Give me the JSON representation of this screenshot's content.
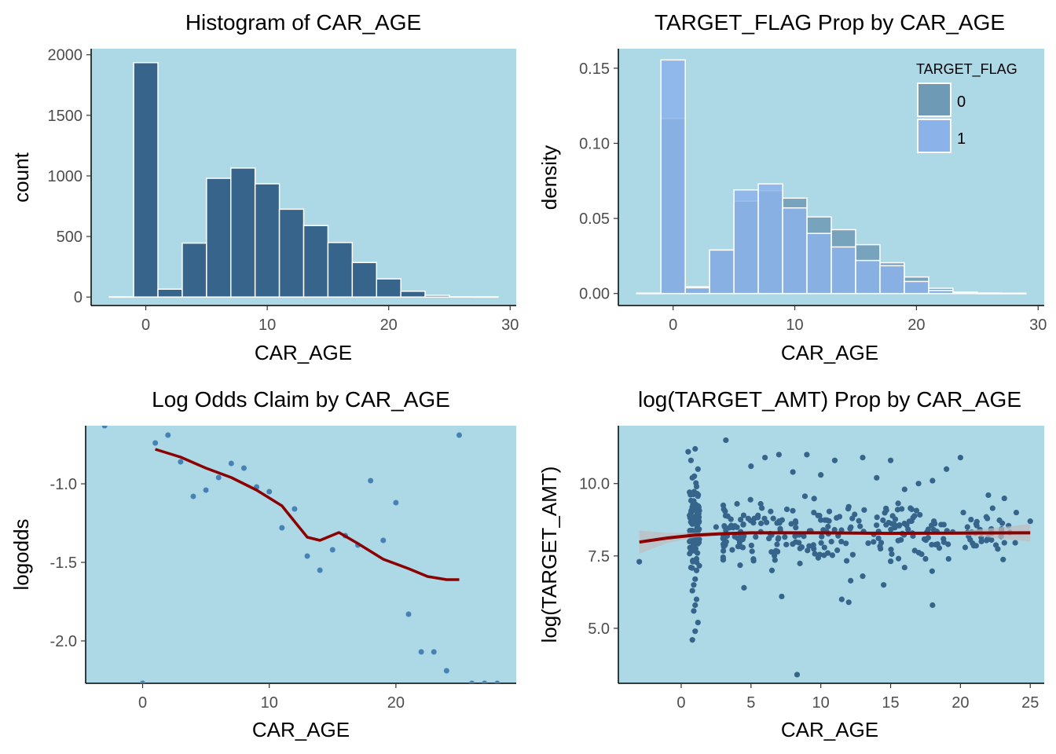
{
  "panel_background": "#add8e6",
  "colors": {
    "bar_fill": "#36648b",
    "bar_outline": "#ffffff",
    "flag0_fill": "#6e9ab5",
    "flag1_fill": "#8bb3ea",
    "point": "#4682b4",
    "point_dark": "#36648b",
    "smooth_line": "#8b0000",
    "ribbon": "#bebebe"
  },
  "chart_data": [
    {
      "id": "p1",
      "type": "bar",
      "title": "Histogram of CAR_AGE",
      "xlabel": "CAR_AGE",
      "ylabel": "count",
      "xlim": [
        -4.5,
        30.5
      ],
      "ylim": [
        -70,
        2050
      ],
      "xticks": [
        0,
        10,
        20,
        30
      ],
      "yticks": [
        0,
        500,
        1000,
        1500,
        2000
      ],
      "bin_width": 2,
      "bin_centers": [
        -2,
        0,
        2,
        4,
        6,
        8,
        10,
        12,
        14,
        16,
        18,
        20,
        22,
        24,
        26,
        28
      ],
      "values": [
        2,
        1935,
        65,
        445,
        980,
        1065,
        935,
        725,
        590,
        450,
        285,
        150,
        48,
        14,
        3,
        2
      ]
    },
    {
      "id": "p2",
      "type": "bar",
      "title": "TARGET_FLAG Prop by CAR_AGE",
      "xlabel": "CAR_AGE",
      "ylabel": "density",
      "xlim": [
        -4.5,
        30.5
      ],
      "ylim": [
        -0.008,
        0.163
      ],
      "xticks": [
        0,
        10,
        20,
        30
      ],
      "yticks": [
        0.0,
        0.05,
        0.1,
        0.15
      ],
      "ytick_labels": [
        "0.00",
        "0.05",
        "0.10",
        "0.15"
      ],
      "bin_width": 2,
      "bin_centers": [
        -2,
        0,
        2,
        4,
        6,
        8,
        10,
        12,
        14,
        16,
        18,
        20,
        22,
        24,
        26,
        28
      ],
      "legend": {
        "title": "TARGET_FLAG",
        "position": "top-right"
      },
      "series": [
        {
          "name": "0",
          "values": [
            0.0002,
            0.1165,
            0.0045,
            0.0285,
            0.0615,
            0.0685,
            0.0635,
            0.051,
            0.0425,
            0.0325,
            0.0205,
            0.011,
            0.0035,
            0.001,
            0.0003,
            0.0002
          ]
        },
        {
          "name": "1",
          "values": [
            0.0002,
            0.1555,
            0.0038,
            0.029,
            0.069,
            0.073,
            0.057,
            0.04,
            0.031,
            0.022,
            0.0185,
            0.008,
            0.002,
            0.0005,
            0.0001,
            0.0001
          ]
        }
      ]
    },
    {
      "id": "p3",
      "type": "scatter",
      "title": "Log Odds Claim by CAR_AGE",
      "xlabel": "CAR_AGE",
      "ylabel": "logodds",
      "xlim": [
        -4.5,
        29.5
      ],
      "ylim": [
        -2.27,
        -0.63
      ],
      "xticks": [
        0,
        10,
        20
      ],
      "yticks": [
        -2.0,
        -1.5,
        -1.0
      ],
      "ytick_labels": [
        "-2.0",
        "-1.5",
        "-1.0"
      ],
      "points": [
        [
          -3,
          -0.63
        ],
        [
          0,
          -2.27
        ],
        [
          1,
          -0.74
        ],
        [
          2,
          -0.69
        ],
        [
          3,
          -0.86
        ],
        [
          4,
          -1.08
        ],
        [
          5,
          -1.04
        ],
        [
          6,
          -0.96
        ],
        [
          7,
          -0.87
        ],
        [
          8,
          -0.9
        ],
        [
          9,
          -1.02
        ],
        [
          10,
          -1.05
        ],
        [
          11,
          -1.28
        ],
        [
          12,
          -1.16
        ],
        [
          13,
          -1.46
        ],
        [
          14,
          -1.55
        ],
        [
          15,
          -1.42
        ],
        [
          16,
          -1.33
        ],
        [
          17,
          -1.39
        ],
        [
          18,
          -0.98
        ],
        [
          19,
          -1.36
        ],
        [
          20,
          -1.12
        ],
        [
          21,
          -1.83
        ],
        [
          22,
          -2.07
        ],
        [
          23,
          -2.07
        ],
        [
          24,
          -2.19
        ],
        [
          25,
          -0.69
        ],
        [
          26,
          -2.27
        ],
        [
          27,
          -2.27
        ],
        [
          28,
          -2.27
        ]
      ],
      "smooth": [
        [
          1,
          -0.78
        ],
        [
          3,
          -0.83
        ],
        [
          5,
          -0.9
        ],
        [
          7,
          -0.96
        ],
        [
          9,
          -1.04
        ],
        [
          11,
          -1.14
        ],
        [
          12,
          -1.24
        ],
        [
          13,
          -1.34
        ],
        [
          14,
          -1.36
        ],
        [
          15.5,
          -1.31
        ],
        [
          17,
          -1.38
        ],
        [
          19,
          -1.48
        ],
        [
          21,
          -1.54
        ],
        [
          22.5,
          -1.59
        ],
        [
          24,
          -1.61
        ],
        [
          25,
          -1.61
        ]
      ]
    },
    {
      "id": "p4",
      "type": "scatter",
      "title": "log(TARGET_AMT) Prop by CAR_AGE",
      "xlabel": "CAR_AGE",
      "ylabel": "log(TARGET_AMT)",
      "xlim": [
        -4.5,
        26.0
      ],
      "ylim": [
        3.1,
        12.0
      ],
      "xticks": [
        0,
        5,
        10,
        15,
        20,
        25
      ],
      "yticks": [
        5.0,
        7.5,
        10.0
      ],
      "ytick_labels": [
        "5.0",
        "7.5",
        "10.0"
      ],
      "points": [
        [
          -3,
          7.3
        ],
        [
          0.5,
          11.1
        ],
        [
          0.7,
          10.8
        ],
        [
          0.8,
          10.2
        ],
        [
          0.6,
          9.7
        ],
        [
          0.9,
          9.4
        ],
        [
          0.7,
          9.0
        ],
        [
          0.8,
          8.6
        ],
        [
          1.0,
          8.3
        ],
        [
          0.6,
          8.0
        ],
        [
          0.9,
          7.8
        ],
        [
          1.1,
          7.4
        ],
        [
          0.7,
          7.1
        ],
        [
          1.0,
          6.7
        ],
        [
          0.8,
          6.3
        ],
        [
          1.1,
          6.0
        ],
        [
          0.9,
          5.6
        ],
        [
          1.2,
          5.2
        ],
        [
          1.0,
          4.9
        ],
        [
          0.8,
          4.6
        ],
        [
          1.2,
          10.5
        ],
        [
          1.0,
          11.2
        ],
        [
          1.1,
          9.9
        ],
        [
          0.6,
          8.9
        ],
        [
          1.2,
          8.4
        ],
        [
          0.7,
          7.7
        ],
        [
          1.1,
          7.0
        ],
        [
          0.9,
          6.5
        ],
        [
          1.0,
          5.8
        ],
        [
          3.2,
          11.5
        ],
        [
          4.0,
          9.3
        ],
        [
          5.0,
          10.6
        ],
        [
          6.0,
          10.9
        ],
        [
          7.0,
          11.0
        ],
        [
          8.0,
          10.4
        ],
        [
          9.0,
          11.0
        ],
        [
          10.0,
          10.3
        ],
        [
          11.0,
          10.8
        ],
        [
          12.0,
          9.2
        ],
        [
          13.0,
          10.9
        ],
        [
          14.0,
          10.2
        ],
        [
          15.0,
          10.8
        ],
        [
          16.0,
          9.8
        ],
        [
          17.0,
          10.0
        ],
        [
          18.0,
          10.1
        ],
        [
          19.0,
          10.5
        ],
        [
          20.0,
          10.9
        ],
        [
          22.0,
          9.6
        ],
        [
          24.0,
          9.0
        ],
        [
          25.0,
          8.7
        ],
        [
          8.3,
          3.4
        ],
        [
          4.5,
          6.4
        ],
        [
          7.2,
          6.1
        ],
        [
          12.0,
          5.9
        ],
        [
          11.5,
          6.0
        ],
        [
          14.5,
          6.5
        ],
        [
          18.0,
          5.8
        ],
        [
          13.0,
          6.8
        ],
        [
          6.5,
          7.0
        ],
        [
          16.0,
          7.1
        ],
        [
          9.5,
          9.0
        ],
        [
          5.5,
          8.9
        ],
        [
          15.5,
          9.1
        ],
        [
          20.5,
          8.5
        ],
        [
          21.5,
          8.0
        ],
        [
          23.0,
          8.3
        ],
        [
          2.5,
          8.5
        ],
        [
          3.0,
          8.1
        ],
        [
          17.5,
          7.4
        ],
        [
          10.5,
          7.6
        ]
      ],
      "cloud": {
        "x_range": [
          3,
          24
        ],
        "center": 8.3,
        "spread": 0.9,
        "count": 260
      },
      "column": {
        "x_range": [
          0.6,
          1.3
        ],
        "center": 8.5,
        "spread": 1.0,
        "count": 90
      },
      "smooth": [
        [
          -3,
          7.98
        ],
        [
          -1,
          8.12
        ],
        [
          1,
          8.22
        ],
        [
          3,
          8.27
        ],
        [
          5,
          8.3
        ],
        [
          10,
          8.3
        ],
        [
          15,
          8.28
        ],
        [
          20,
          8.29
        ],
        [
          25,
          8.3
        ]
      ],
      "ribbon_upper": [
        [
          -3,
          8.38
        ],
        [
          -1,
          8.3
        ],
        [
          1,
          8.3
        ],
        [
          3,
          8.32
        ],
        [
          5,
          8.33
        ],
        [
          10,
          8.33
        ],
        [
          15,
          8.32
        ],
        [
          20,
          8.35
        ],
        [
          25,
          8.6
        ]
      ],
      "ribbon_lower": [
        [
          -3,
          7.58
        ],
        [
          -1,
          7.95
        ],
        [
          1,
          8.14
        ],
        [
          3,
          8.22
        ],
        [
          5,
          8.27
        ],
        [
          10,
          8.27
        ],
        [
          15,
          8.24
        ],
        [
          20,
          8.23
        ],
        [
          25,
          8.0
        ]
      ]
    }
  ]
}
